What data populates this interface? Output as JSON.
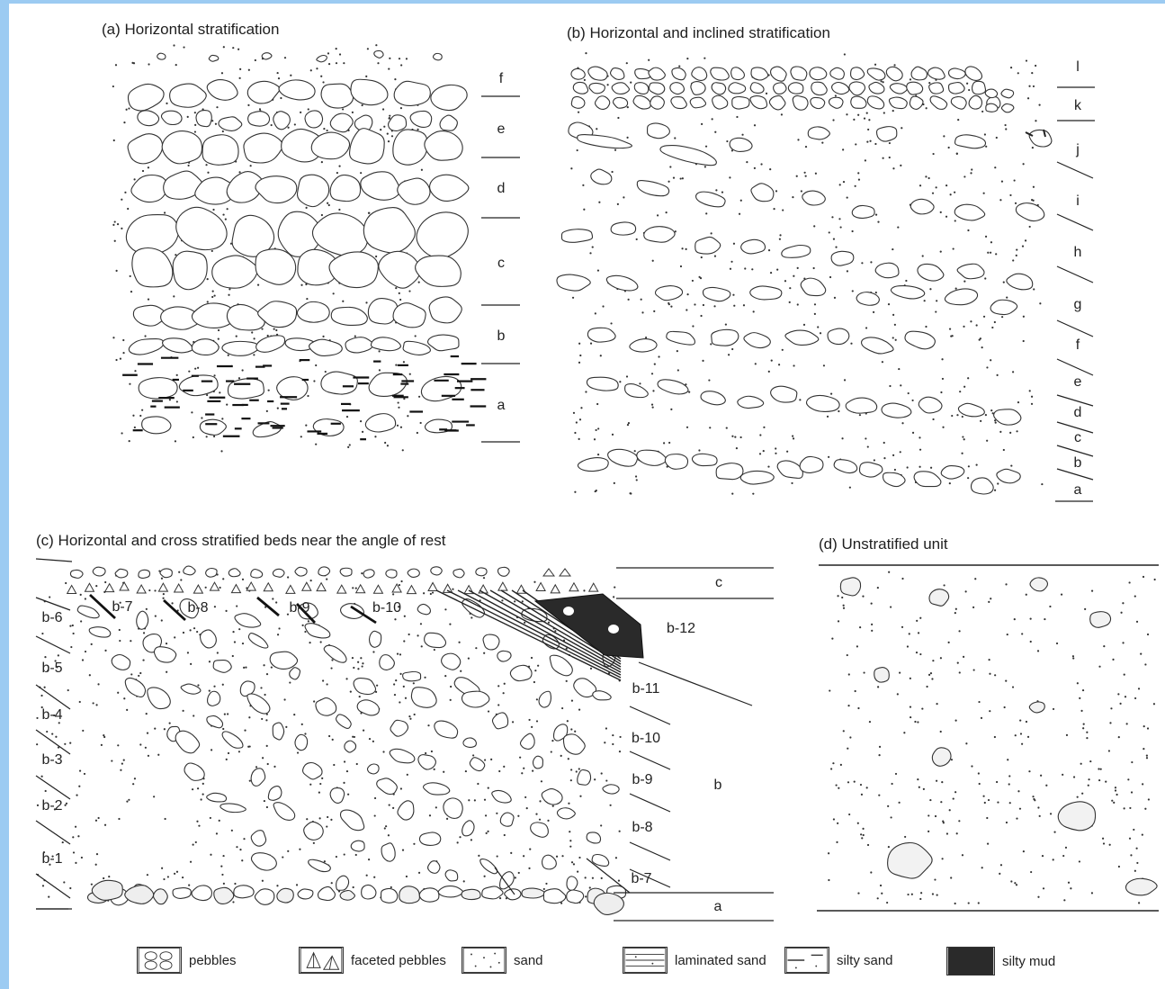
{
  "panels": {
    "a": {
      "title": "(a) Horizontal stratification",
      "beds": [
        "f",
        "e",
        "d",
        "c",
        "b",
        "a"
      ]
    },
    "b": {
      "title": "(b) Horizontal and inclined stratification",
      "beds": [
        "l",
        "k",
        "j",
        "i",
        "h",
        "g",
        "f",
        "e",
        "d",
        "c",
        "b",
        "a"
      ]
    },
    "c": {
      "title": "(c) Horizontal and cross stratified beds near the angle of rest",
      "left_beds": [
        "b-6",
        "b-5",
        "b-4",
        "b-3",
        "b-2",
        "b-1"
      ],
      "top_foreset_labels": [
        "b-7",
        "b-8",
        "b-9",
        "b-10"
      ],
      "right_beds": [
        "c",
        "b-12",
        "b-11",
        "b-10",
        "b-9",
        "b",
        "b-8",
        "b-7",
        "a"
      ]
    },
    "d": {
      "title": "(d) Unstratified unit"
    }
  },
  "legend": [
    {
      "icon": "pebbles-icon",
      "label": "pebbles"
    },
    {
      "icon": "faceted-pebbles-icon",
      "label": "faceted pebbles"
    },
    {
      "icon": "sand-icon",
      "label": "sand"
    },
    {
      "icon": "laminated-sand-icon",
      "label": "laminated sand"
    },
    {
      "icon": "silty-sand-icon",
      "label": "silty sand"
    },
    {
      "icon": "silty-mud-icon",
      "label": "silty mud"
    }
  ],
  "colors": {
    "border": "#9ccbf2",
    "ink": "#222222",
    "mud": "#2a2a2a"
  }
}
